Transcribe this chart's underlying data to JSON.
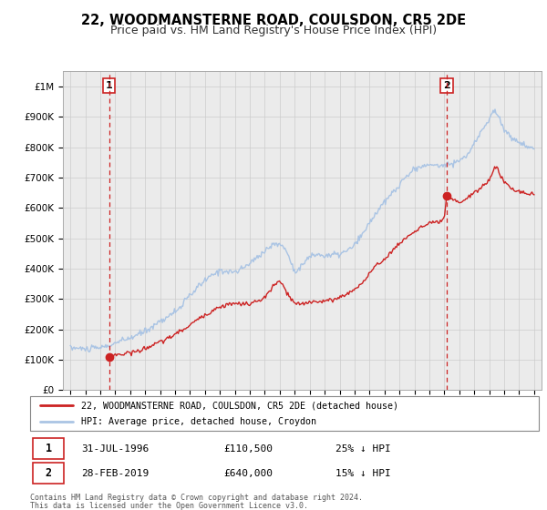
{
  "title": "22, WOODMANSTERNE ROAD, COULSDON, CR5 2DE",
  "subtitle": "Price paid vs. HM Land Registry's House Price Index (HPI)",
  "title_fontsize": 10.5,
  "subtitle_fontsize": 9,
  "xlim": [
    1993.5,
    2025.5
  ],
  "ylim": [
    0,
    1050000
  ],
  "yticks": [
    0,
    100000,
    200000,
    300000,
    400000,
    500000,
    600000,
    700000,
    800000,
    900000,
    1000000
  ],
  "ytick_labels": [
    "£0",
    "£100K",
    "£200K",
    "£300K",
    "£400K",
    "£500K",
    "£600K",
    "£700K",
    "£800K",
    "£900K",
    "£1M"
  ],
  "xticks": [
    1994,
    1995,
    1996,
    1997,
    1998,
    1999,
    2000,
    2001,
    2002,
    2003,
    2004,
    2005,
    2006,
    2007,
    2008,
    2009,
    2010,
    2011,
    2012,
    2013,
    2014,
    2015,
    2016,
    2017,
    2018,
    2019,
    2020,
    2021,
    2022,
    2023,
    2024,
    2025
  ],
  "hpi_color": "#aac4e4",
  "price_color": "#cc2222",
  "marker_color": "#cc2222",
  "grid_color": "#cccccc",
  "bg_color": "#ebebeb",
  "annotation_box_color": "#cc2222",
  "sale1_x": 1996.58,
  "sale1_y": 110500,
  "sale2_x": 2019.16,
  "sale2_y": 640000,
  "legend_label_red": "22, WOODMANSTERNE ROAD, COULSDON, CR5 2DE (detached house)",
  "legend_label_blue": "HPI: Average price, detached house, Croydon",
  "footer1": "Contains HM Land Registry data © Crown copyright and database right 2024.",
  "footer2": "This data is licensed under the Open Government Licence v3.0."
}
